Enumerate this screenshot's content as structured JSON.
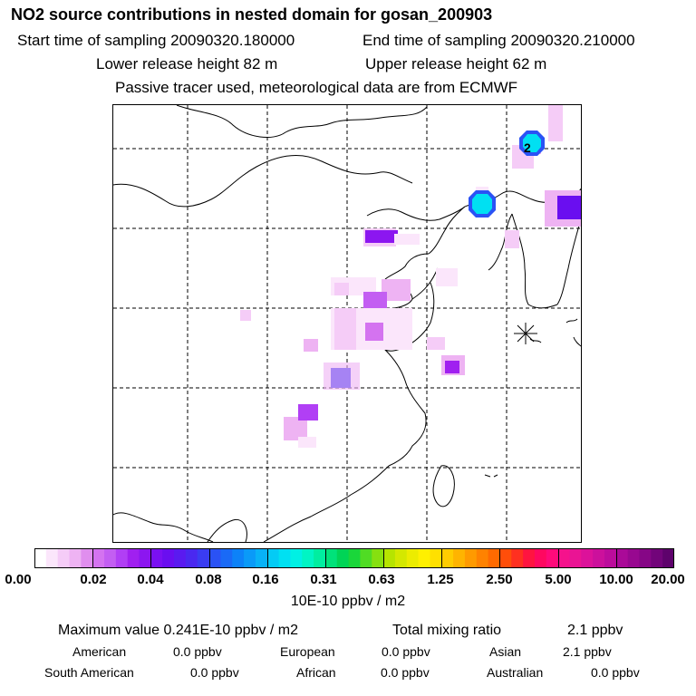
{
  "header": {
    "title": "NO2 source contributions in nested domain for gosan_200903",
    "start_label": "Start time of sampling 20090320.180000",
    "end_label": "End time of sampling 20090320.210000",
    "lower_label": "Lower release height   82 m",
    "upper_label": "Upper release height   62 m",
    "tracer_note": "Passive tracer used, meteorological data are from ECMWF"
  },
  "map": {
    "receptor_marker": "asterisk-receptor-icon",
    "contour_label": "2"
  },
  "colorbar": {
    "ticks": [
      "0.00",
      "0.02",
      "0.04",
      "0.08",
      "0.16",
      "0.31",
      "0.63",
      "1.25",
      "2.50",
      "5.00",
      "10.00",
      "20.00"
    ],
    "unit": "10E-10 ppbv / m2",
    "colors": [
      "#ffffff",
      "#fbe6fb",
      "#f5ccf7",
      "#eeb3f3",
      "#e08eee",
      "#d473f0",
      "#c35ef2",
      "#b13ff5",
      "#a020f0",
      "#8c16f0",
      "#7a10f2",
      "#6a0ef0",
      "#5a1af0",
      "#4a28f0",
      "#3a3cf2",
      "#2a52f5",
      "#1a6af6",
      "#0d82f8",
      "#0a9af8",
      "#08b2f7",
      "#04cbf5",
      "#00e0f2",
      "#00f0e4",
      "#00f5c4",
      "#00eea0",
      "#00e27a",
      "#00d456",
      "#1ad63a",
      "#50dc24",
      "#86e010",
      "#b6e400",
      "#d4e800",
      "#ecec00",
      "#fff000",
      "#ffe000",
      "#ffcc00",
      "#ffb400",
      "#ff9a00",
      "#ff8200",
      "#ff6a00",
      "#ff4e0a",
      "#ff3020",
      "#ff1440",
      "#ff0860",
      "#ff0a7a",
      "#f5128c",
      "#ea1494",
      "#dc129a",
      "#cc109c",
      "#bc0c9c",
      "#aa0a98",
      "#980890",
      "#860686",
      "#72047a",
      "#5e026c"
    ]
  },
  "stats": {
    "max_value": "Maximum value  0.241E-10 ppbv / m2",
    "total_mixing": "Total mixing ratio",
    "total_value": "2.1 ppbv"
  },
  "regions": [
    {
      "name": "American",
      "value": "0.0 ppbv"
    },
    {
      "name": "European",
      "value": "0.0 ppbv"
    },
    {
      "name": "Asian",
      "value": "2.1 ppbv"
    },
    {
      "name": "South American",
      "value": "0.0 ppbv"
    },
    {
      "name": "African",
      "value": "0.0 ppbv"
    },
    {
      "name": "Australian",
      "value": "0.0 ppbv"
    }
  ]
}
